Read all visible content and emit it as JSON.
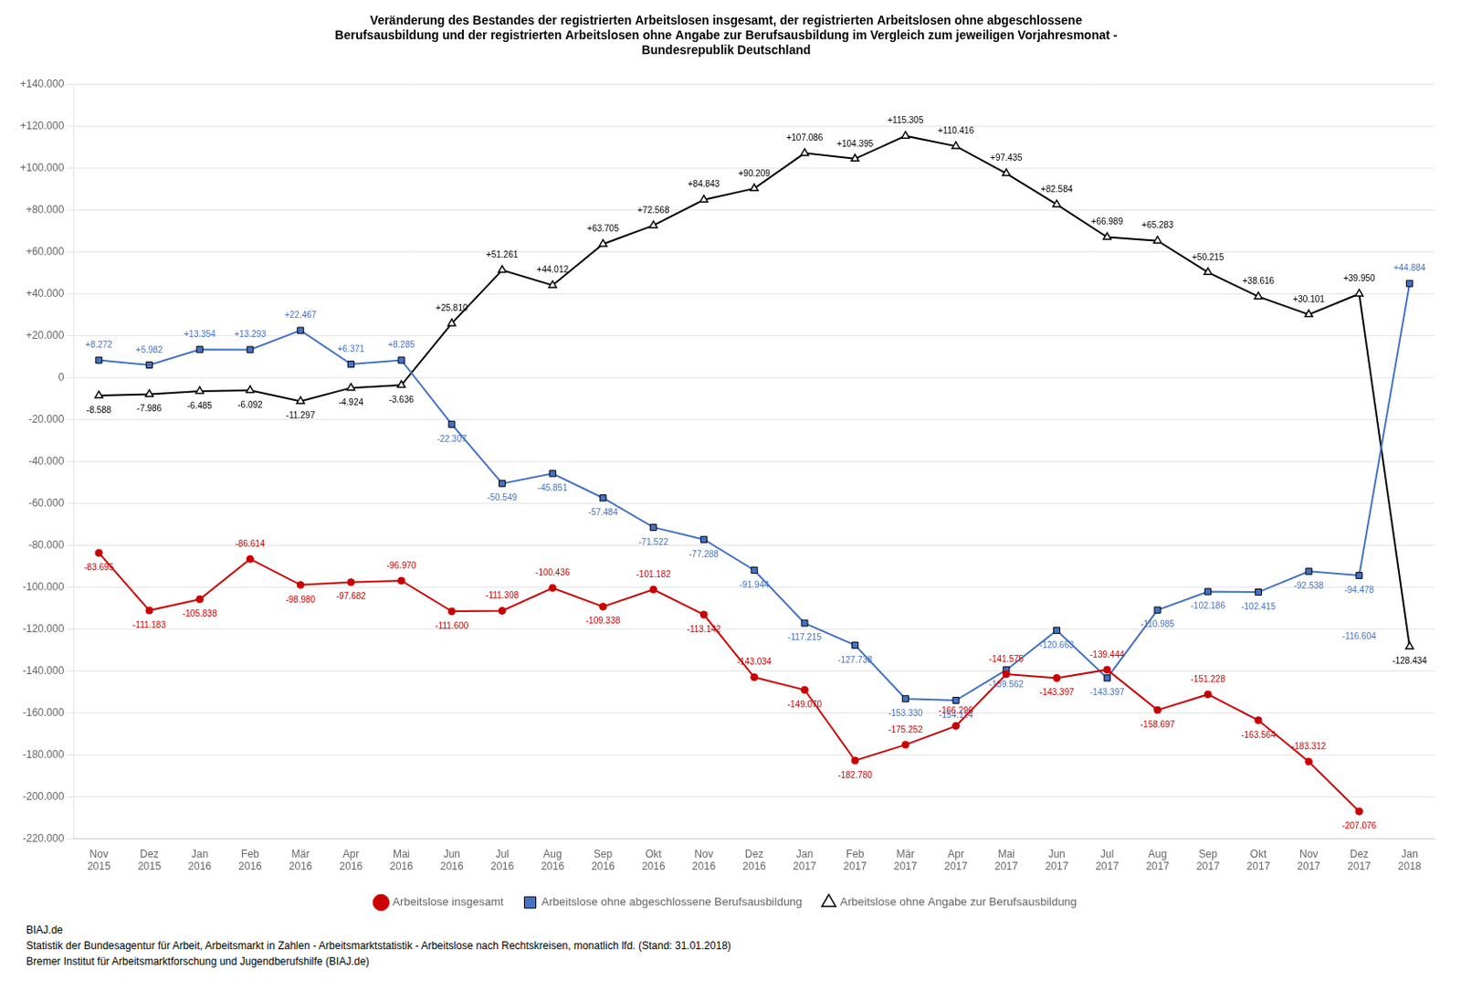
{
  "chart_data": {
    "type": "line",
    "title": [
      "Veränderung des Bestandes der registrierten Arbeitslosen insgesamt, der registrierten Arbeitslosen ohne abgeschlossene",
      "Berufsausbildung und der registrierten Arbeitslosen ohne Angabe zur Berufsausbildung im Vergleich zum jeweiligen Vorjahresmonat -",
      "Bundesrepublik Deutschland"
    ],
    "categories": [
      "Nov\n2015",
      "Dez\n2015",
      "Jan\n2016",
      "Feb\n2016",
      "Mär\n2016",
      "Apr\n2016",
      "Mai\n2016",
      "Jun\n2016",
      "Jul\n2016",
      "Aug\n2016",
      "Sep\n2016",
      "Okt\n2016",
      "Nov\n2016",
      "Dez\n2016",
      "Jan\n2017",
      "Feb\n2017",
      "Mär\n2017",
      "Apr\n2017",
      "Mai\n2017",
      "Jun\n2017",
      "Jul\n2017",
      "Aug\n2017",
      "Sep\n2017",
      "Okt\n2017",
      "Nov\n2017",
      "Dez\n2017",
      "Jan\n2018"
    ],
    "series": [
      {
        "name": "Arbeitslose insgesamt",
        "color": "#cc0000",
        "marker": "circle",
        "values": [
          -83695,
          -111183,
          -105838,
          -86614,
          -98980,
          -97682,
          -96970,
          -111600,
          -111308,
          -100436,
          -109338,
          -101182,
          -113142,
          -143034,
          -149070,
          -182780,
          -175252,
          -166296,
          -141575,
          -143397,
          -139444,
          -158697,
          -151228,
          -163564,
          -183312,
          -207076,
          null
        ],
        "value_labels": [
          "-83.695",
          "-111.183",
          "-105.838",
          "-86.614",
          "-98.980",
          "-97.682",
          "-96.970",
          "-111.600",
          "-111.308",
          "-100.436",
          "-109.338",
          "-101.182",
          "-113.142",
          "-143.034",
          "-149.070",
          "-182.780",
          "-175.252",
          "-166.296",
          "-141.575",
          "-143.397",
          "-139.444",
          "-158.697",
          "-151.228",
          "-163.564",
          "-183.312",
          "-207.076",
          null
        ]
      },
      {
        "name": "Arbeitslose ohne abgeschlossene Berufsausbildung",
        "color": "#4472c4",
        "marker": "square",
        "values": [
          8272,
          5982,
          13354,
          13293,
          22467,
          6371,
          8285,
          -22307,
          -50549,
          -45851,
          -57484,
          -71522,
          -77288,
          -91944,
          -117215,
          -127738,
          -153330,
          -154114,
          -139562,
          -120663,
          -143397,
          -110985,
          -102186,
          -102415,
          -92538,
          -94478,
          44884
        ],
        "value_labels": [
          "+8.272",
          "+5.982",
          "+13.354",
          "+13.293",
          "+22.467",
          "+6.371",
          "+8.285",
          "-22.307",
          "-50.549",
          "-45.851",
          "-57.484",
          "-71.522",
          "-77.288",
          "-91.944",
          "-117.215",
          "-127.738",
          "-153.330",
          "-154.114",
          "-139.562",
          "-120.663",
          "-143.397",
          "-110.985",
          "-102.186",
          "-102.415",
          "-92.538",
          "-94.478",
          "+44.884"
        ]
      },
      {
        "name": "Arbeitslose ohne Angabe zur Berufsausbildung",
        "color": "#000000",
        "marker": "triangle",
        "values": [
          -8588,
          -7986,
          -6485,
          -6092,
          -11297,
          -4924,
          -3636,
          25810,
          51261,
          44012,
          63705,
          72568,
          84843,
          90209,
          107086,
          104395,
          115305,
          110416,
          97435,
          82584,
          66989,
          65283,
          50215,
          38616,
          30101,
          39950,
          -128434
        ],
        "value_labels": [
          "-8.588",
          "-7.986",
          "-6.485",
          "-6.092",
          "-11.297",
          "-4.924",
          "-3.636",
          "+25.810",
          "+51.261",
          "+44.012",
          "+63.705",
          "+72.568",
          "+84.843",
          "+90.209",
          "+107.086",
          "+104.395",
          "+115.305",
          "+110.416",
          "+97.435",
          "+82.584",
          "+66.989",
          "+65.283",
          "+50.215",
          "+38.616",
          "+30.101",
          "+39.950",
          "-128.434"
        ]
      }
    ],
    "annotations": [
      {
        "text": "-116.604",
        "x": "Dez\n2017",
        "y": -116604,
        "color": "#4472c4"
      }
    ],
    "ylim": [
      -220000,
      140000
    ],
    "yticks": [
      {
        "value": -220000,
        "label": "-220.000"
      },
      {
        "value": -200000,
        "label": "-200.000"
      },
      {
        "value": -180000,
        "label": "-180.000"
      },
      {
        "value": -160000,
        "label": "-160.000"
      },
      {
        "value": -140000,
        "label": "-140.000"
      },
      {
        "value": -120000,
        "label": "-120.000"
      },
      {
        "value": -100000,
        "label": "-100.000"
      },
      {
        "value": -80000,
        "label": "-80.000"
      },
      {
        "value": -60000,
        "label": "-60.000"
      },
      {
        "value": -40000,
        "label": "-40.000"
      },
      {
        "value": -20000,
        "label": "-20.000"
      },
      0,
      {
        "value": 20000,
        "label": "+20.000"
      },
      {
        "value": 40000,
        "label": "+40.000"
      },
      {
        "value": 60000,
        "label": "+60.000"
      },
      {
        "value": 80000,
        "label": "+80.000"
      },
      {
        "value": 100000,
        "label": "+100.000"
      },
      {
        "value": 120000,
        "label": "+120.000"
      },
      {
        "value": 140000,
        "label": "+140.000"
      }
    ],
    "grid": true,
    "legend": "bottom",
    "data_labels": true,
    "watermark": "BIAJ.de",
    "footer": [
      "Statistik der Bundesagentur für Arbeit, Arbeitsmarkt in Zahlen - Arbeitsmarktstatistik - Arbeitslose nach Rechtskreisen, monatlich lfd. (Stand: 31.01.2018)",
      "Bremer Institut für Arbeitsmarktforschung und Jugendberufshilfe (BIAJ.de)"
    ]
  }
}
